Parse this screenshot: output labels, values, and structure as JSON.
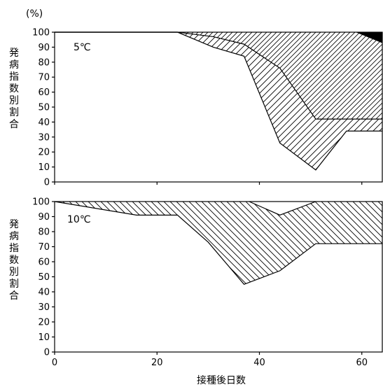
{
  "chart_data": [
    {
      "type": "area",
      "panel_label": "5℃",
      "y_unit": "(%)",
      "ylabel": "発病指数別割合",
      "xlabel": "",
      "xlim": [
        0,
        64
      ],
      "ylim": [
        0,
        100
      ],
      "yticks": [
        0,
        10,
        20,
        30,
        40,
        50,
        60,
        70,
        80,
        90,
        100
      ],
      "xticks": [
        0,
        20,
        40,
        60
      ],
      "show_x_tick_labels": false,
      "series": [
        {
          "fill": "hatch-forward",
          "upper": [
            [
              0,
              100
            ],
            [
              24,
              100
            ],
            [
              31,
              100
            ],
            [
              37,
              100
            ],
            [
              44,
              100
            ],
            [
              51,
              100
            ],
            [
              57,
              100
            ],
            [
              64,
              100
            ]
          ],
          "lower": [
            [
              0,
              100
            ],
            [
              24,
              100
            ],
            [
              31,
              97
            ],
            [
              37,
              92
            ],
            [
              44,
              76
            ],
            [
              51,
              42
            ],
            [
              57,
              42
            ],
            [
              64,
              42
            ]
          ]
        },
        {
          "fill": "hatch-forward-dense",
          "upper": [
            [
              0,
              100
            ],
            [
              24,
              100
            ],
            [
              31,
              97
            ],
            [
              37,
              92
            ],
            [
              44,
              76
            ],
            [
              51,
              42
            ],
            [
              57,
              42
            ],
            [
              64,
              42
            ]
          ],
          "lower": [
            [
              0,
              100
            ],
            [
              24,
              100
            ],
            [
              31,
              90
            ],
            [
              37,
              84
            ],
            [
              44,
              26
            ],
            [
              51,
              8
            ],
            [
              57,
              34
            ],
            [
              64,
              34
            ]
          ]
        },
        {
          "fill": "solid-black",
          "upper": [
            [
              59,
              100
            ],
            [
              64,
              100
            ]
          ],
          "lower": [
            [
              59,
              100
            ],
            [
              64,
              93
            ]
          ]
        }
      ]
    },
    {
      "type": "area",
      "panel_label": "10℃",
      "y_unit": "",
      "ylabel": "発病指数別割合",
      "xlabel": "接種後日数",
      "xlim": [
        0,
        64
      ],
      "ylim": [
        0,
        100
      ],
      "yticks": [
        0,
        10,
        20,
        30,
        40,
        50,
        60,
        70,
        80,
        90,
        100
      ],
      "xticks": [
        0,
        20,
        40,
        60
      ],
      "show_x_tick_labels": true,
      "series": [
        {
          "fill": "hatch-back",
          "upper": [
            [
              0,
              100
            ],
            [
              16,
              100
            ],
            [
              24,
              100
            ],
            [
              30,
              100
            ],
            [
              37,
              100
            ],
            [
              44,
              100
            ],
            [
              51,
              100
            ],
            [
              64,
              100
            ]
          ],
          "lower": [
            [
              0,
              100
            ],
            [
              16,
              91
            ],
            [
              24,
              91
            ],
            [
              30,
              73
            ],
            [
              37,
              45
            ],
            [
              44,
              54
            ],
            [
              51,
              72
            ],
            [
              64,
              72
            ]
          ]
        },
        {
          "fill": "white",
          "upper": [
            [
              38,
              100
            ],
            [
              44,
              100
            ],
            [
              51,
              100
            ]
          ],
          "lower": [
            [
              38,
              100
            ],
            [
              44,
              91
            ],
            [
              51,
              100
            ]
          ]
        }
      ]
    }
  ]
}
